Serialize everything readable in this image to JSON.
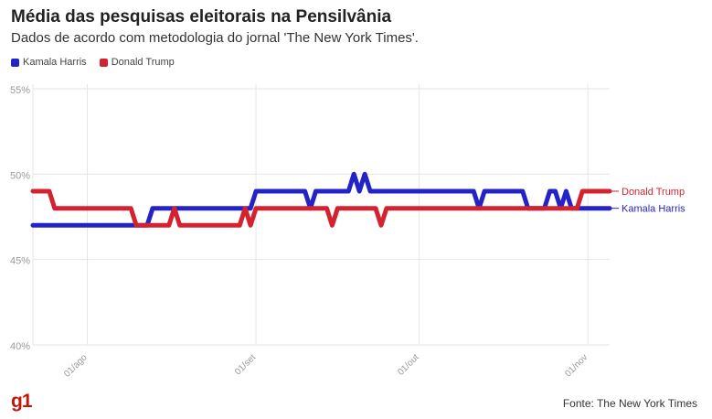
{
  "title": "Média das pesquisas eleitorais na Pensilvânia",
  "subtitle": "Dados de acordo com metodologia do jornal 'The New York Times'.",
  "source": "Fonte: The New York Times",
  "logo": "g1",
  "colors": {
    "harris": "#2323c8",
    "trump": "#d42330",
    "grid": "#e6e6e6",
    "tick": "#999999"
  },
  "chart_data": {
    "type": "line",
    "title": "Média das pesquisas eleitorais na Pensilvânia",
    "subtitle": "Dados de acordo com metodologia do jornal 'The New York Times'.",
    "xlabel": "",
    "ylabel": "",
    "x_ticks": [
      "01/ago",
      "01/set",
      "01/out",
      "01/nov"
    ],
    "y_ticks": [
      "40%",
      "45%",
      "50%",
      "55%"
    ],
    "ylim": [
      40,
      55
    ],
    "xlim": [
      "2024-07-22",
      "2024-11-05"
    ],
    "grid": true,
    "legend": "top-left",
    "series": [
      {
        "name": "Kamala Harris",
        "end_label": "Kamala Harris",
        "color": "#2323c8",
        "points": [
          [
            "2024-07-22",
            47
          ],
          [
            "2024-08-04",
            47
          ],
          [
            "2024-08-05",
            47
          ],
          [
            "2024-08-06",
            47
          ],
          [
            "2024-08-07",
            47
          ],
          [
            "2024-08-08",
            47
          ],
          [
            "2024-08-09",
            47
          ],
          [
            "2024-08-10",
            47
          ],
          [
            "2024-08-11",
            47
          ],
          [
            "2024-08-12",
            47
          ],
          [
            "2024-08-13",
            48
          ],
          [
            "2024-08-31",
            48
          ],
          [
            "2024-09-01",
            49
          ],
          [
            "2024-09-10",
            49
          ],
          [
            "2024-09-11",
            48
          ],
          [
            "2024-09-12",
            49
          ],
          [
            "2024-09-18",
            49
          ],
          [
            "2024-09-19",
            50
          ],
          [
            "2024-09-20",
            49
          ],
          [
            "2024-09-21",
            50
          ],
          [
            "2024-09-22",
            49
          ],
          [
            "2024-10-11",
            49
          ],
          [
            "2024-10-12",
            48
          ],
          [
            "2024-10-13",
            49
          ],
          [
            "2024-10-20",
            49
          ],
          [
            "2024-10-21",
            48
          ],
          [
            "2024-10-24",
            48
          ],
          [
            "2024-10-25",
            49
          ],
          [
            "2024-10-26",
            49
          ],
          [
            "2024-10-27",
            48
          ],
          [
            "2024-10-28",
            49
          ],
          [
            "2024-10-29",
            48
          ],
          [
            "2024-11-05",
            48
          ]
        ]
      },
      {
        "name": "Donald Trump",
        "end_label": "Donald Trump",
        "color": "#d42330",
        "points": [
          [
            "2024-07-22",
            49
          ],
          [
            "2024-07-25",
            49
          ],
          [
            "2024-07-26",
            48
          ],
          [
            "2024-08-09",
            48
          ],
          [
            "2024-08-10",
            47
          ],
          [
            "2024-08-16",
            47
          ],
          [
            "2024-08-17",
            48
          ],
          [
            "2024-08-18",
            47
          ],
          [
            "2024-08-29",
            47
          ],
          [
            "2024-08-30",
            48
          ],
          [
            "2024-08-31",
            47
          ],
          [
            "2024-09-01",
            48
          ],
          [
            "2024-09-14",
            48
          ],
          [
            "2024-09-15",
            47
          ],
          [
            "2024-09-16",
            48
          ],
          [
            "2024-09-22",
            48
          ],
          [
            "2024-09-23",
            48
          ],
          [
            "2024-09-24",
            47
          ],
          [
            "2024-09-25",
            48
          ],
          [
            "2024-10-30",
            48
          ],
          [
            "2024-10-31",
            49
          ],
          [
            "2024-11-05",
            49
          ]
        ]
      }
    ]
  }
}
